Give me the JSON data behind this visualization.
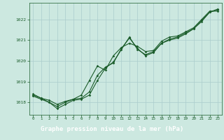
{
  "title": "Graphe pression niveau de la mer (hPa)",
  "background_color": "#cce8e0",
  "plot_bg_color": "#cce8e0",
  "grid_color": "#aacccc",
  "line_color": "#1a5c2a",
  "title_bg_color": "#2d6e3a",
  "title_text_color": "#ffffff",
  "xlim": [
    -0.5,
    23.5
  ],
  "ylim": [
    1017.4,
    1022.8
  ],
  "yticks": [
    1018,
    1019,
    1020,
    1021,
    1022
  ],
  "xticks": [
    0,
    1,
    2,
    3,
    4,
    5,
    6,
    7,
    8,
    9,
    10,
    11,
    12,
    13,
    14,
    15,
    16,
    17,
    18,
    19,
    20,
    21,
    22,
    23
  ],
  "hours": [
    0,
    1,
    2,
    3,
    4,
    5,
    6,
    7,
    8,
    9,
    10,
    11,
    12,
    13,
    14,
    15,
    16,
    17,
    18,
    19,
    20,
    21,
    22,
    23
  ],
  "line1": [
    1018.3,
    1018.15,
    1018.0,
    1017.8,
    1018.0,
    1018.15,
    1018.2,
    1018.5,
    1019.3,
    1019.7,
    1019.9,
    1020.6,
    1021.1,
    1020.6,
    1020.25,
    1020.4,
    1020.85,
    1021.0,
    1021.1,
    1021.3,
    1021.55,
    1021.9,
    1022.35,
    1022.5
  ],
  "line2": [
    1018.35,
    1018.2,
    1018.1,
    1017.9,
    1018.05,
    1018.15,
    1018.35,
    1019.05,
    1019.75,
    1019.55,
    1020.25,
    1020.65,
    1020.85,
    1020.7,
    1020.45,
    1020.5,
    1020.95,
    1021.15,
    1021.2,
    1021.4,
    1021.6,
    1022.0,
    1022.4,
    1022.4
  ],
  "line3": [
    1018.4,
    1018.2,
    1018.0,
    1017.7,
    1017.9,
    1018.1,
    1018.15,
    1018.35,
    1019.05,
    1019.65,
    1019.95,
    1020.55,
    1021.15,
    1020.55,
    1020.3,
    1020.45,
    1020.85,
    1021.05,
    1021.15,
    1021.35,
    1021.55,
    1021.95,
    1022.35,
    1022.45
  ]
}
